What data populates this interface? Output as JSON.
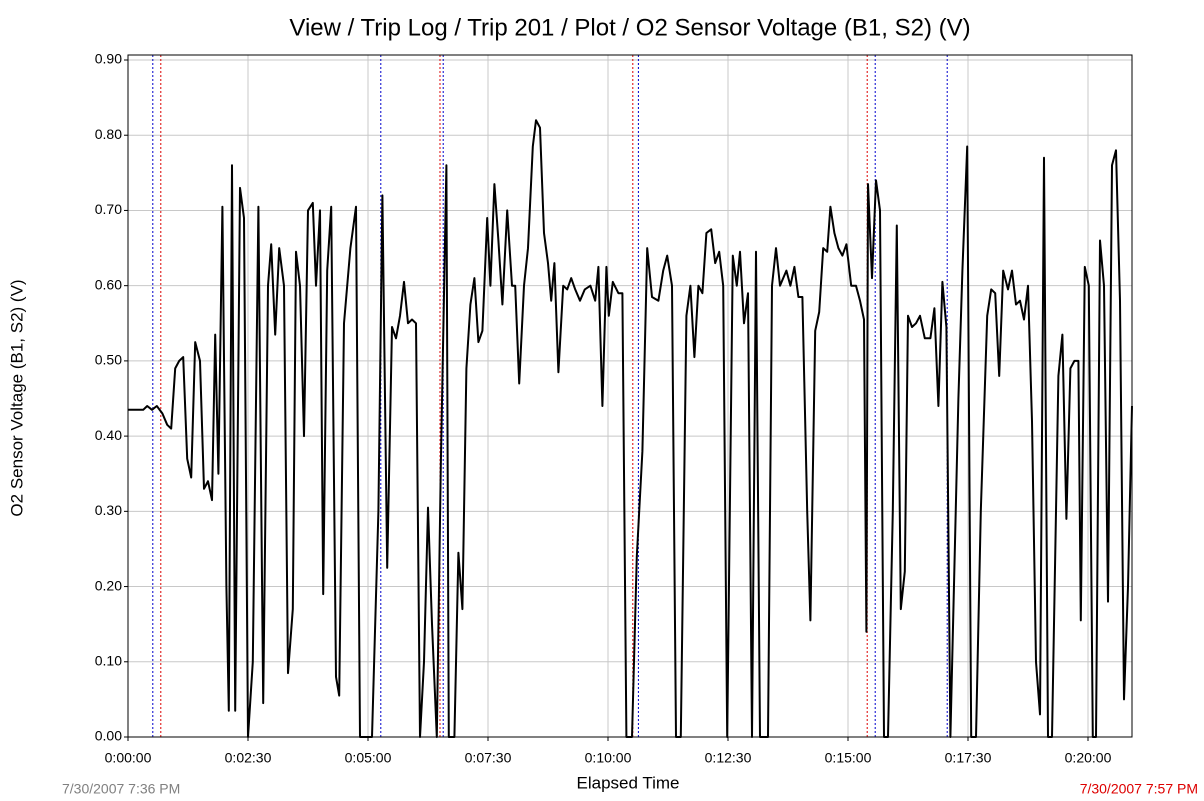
{
  "chart_data": {
    "type": "line",
    "title": "View / Trip Log / Trip 201 / Plot / O2 Sensor Voltage (B1, S2) (V)",
    "xlabel": "Elapsed Time",
    "ylabel": "O2 Sensor Voltage (B1, S2) (V)",
    "start_label": "7/30/2007 7:36 PM",
    "end_label": "7/30/2007 7:57 PM",
    "grid": true,
    "xlim": [
      0,
      1255
    ],
    "ylim": [
      0,
      0.9
    ],
    "xticks": [
      {
        "value": 0,
        "label": "0:00:00"
      },
      {
        "value": 150,
        "label": "0:02:30"
      },
      {
        "value": 300,
        "label": "0:05:00"
      },
      {
        "value": 450,
        "label": "0:07:30"
      },
      {
        "value": 600,
        "label": "0:10:00"
      },
      {
        "value": 750,
        "label": "0:12:30"
      },
      {
        "value": 900,
        "label": "0:15:00"
      },
      {
        "value": 1050,
        "label": "0:17:30"
      },
      {
        "value": 1200,
        "label": "0:20:00"
      }
    ],
    "yticks": [
      {
        "value": 0,
        "label": "0.00"
      },
      {
        "value": 0.1,
        "label": "0.10"
      },
      {
        "value": 0.2,
        "label": "0.20"
      },
      {
        "value": 0.3,
        "label": "0.30"
      },
      {
        "value": 0.4,
        "label": "0.40"
      },
      {
        "value": 0.5,
        "label": "0.50"
      },
      {
        "value": 0.6,
        "label": "0.60"
      },
      {
        "value": 0.7,
        "label": "0.70"
      },
      {
        "value": 0.8,
        "label": "0.80"
      },
      {
        "value": 0.9,
        "label": "0.90"
      }
    ],
    "markers": [
      {
        "x": 31,
        "color": "#0000cc"
      },
      {
        "x": 41,
        "color": "#dd0000"
      },
      {
        "x": 316,
        "color": "#0000cc"
      },
      {
        "x": 390,
        "color": "#dd0000"
      },
      {
        "x": 394,
        "color": "#0000cc"
      },
      {
        "x": 631,
        "color": "#dd0000"
      },
      {
        "x": 638,
        "color": "#0000cc"
      },
      {
        "x": 924,
        "color": "#dd0000"
      },
      {
        "x": 934,
        "color": "#0000cc"
      },
      {
        "x": 1024,
        "color": "#0000cc"
      }
    ],
    "series": [
      {
        "color": "#000000",
        "x": [
          0,
          19,
          24,
          30,
          36,
          43,
          49,
          54,
          59,
          64,
          69,
          74,
          79,
          84,
          90,
          95,
          100,
          105,
          109,
          113,
          118,
          123,
          126,
          130,
          134,
          140,
          145,
          150,
          156,
          163,
          169,
          175,
          179,
          184,
          189,
          195,
          200,
          206,
          210,
          215,
          220,
          225,
          231,
          235,
          240,
          244,
          249,
          254,
          260,
          264,
          270,
          278,
          285,
          290,
          305,
          313,
          318,
          324,
          330,
          335,
          340,
          345,
          350,
          355,
          360,
          365,
          370,
          375,
          380,
          386,
          391,
          398,
          401,
          408,
          413,
          418,
          423,
          428,
          433,
          438,
          443,
          449,
          453,
          458,
          463,
          468,
          474,
          480,
          484,
          489,
          495,
          500,
          506,
          510,
          515,
          520,
          525,
          529,
          533,
          538,
          544,
          549,
          554,
          559,
          565,
          571,
          578,
          584,
          588,
          593,
          598,
          601,
          606,
          613,
          618,
          623,
          630,
          636,
          643,
          649,
          655,
          663,
          669,
          674,
          680,
          685,
          691,
          698,
          703,
          708,
          713,
          718,
          723,
          729,
          734,
          739,
          744,
          749,
          756,
          761,
          765,
          770,
          775,
          780,
          785,
          790,
          800,
          805,
          810,
          815,
          823,
          828,
          833,
          838,
          843,
          849,
          853,
          859,
          864,
          869,
          874,
          878,
          883,
          888,
          893,
          898,
          904,
          910,
          915,
          920,
          923,
          925,
          930,
          935,
          940,
          945,
          950,
          956,
          961,
          966,
          971,
          975,
          980,
          985,
          990,
          996,
          1003,
          1008,
          1013,
          1018,
          1023,
          1028,
          1038,
          1043,
          1049,
          1054,
          1060,
          1066,
          1074,
          1079,
          1084,
          1089,
          1094,
          1100,
          1105,
          1110,
          1115,
          1120,
          1125,
          1130,
          1135,
          1140,
          1145,
          1150,
          1155,
          1163,
          1168,
          1173,
          1178,
          1183,
          1188,
          1191,
          1196,
          1201,
          1206,
          1210,
          1215,
          1220,
          1225,
          1230,
          1235,
          1240,
          1245,
          1250,
          1255
        ],
        "values": [
          0.435,
          0.435,
          0.44,
          0.435,
          0.44,
          0.43,
          0.415,
          0.41,
          0.49,
          0.5,
          0.505,
          0.37,
          0.345,
          0.525,
          0.5,
          0.33,
          0.34,
          0.315,
          0.535,
          0.35,
          0.705,
          0.2,
          0.035,
          0.76,
          0.035,
          0.73,
          0.69,
          0,
          0.1,
          0.705,
          0.045,
          0.6,
          0.655,
          0.535,
          0.65,
          0.6,
          0.085,
          0.17,
          0.645,
          0.6,
          0.4,
          0.7,
          0.71,
          0.6,
          0.7,
          0.19,
          0.62,
          0.705,
          0.08,
          0.055,
          0.55,
          0.65,
          0.705,
          0,
          0,
          0.3,
          0.72,
          0.225,
          0.545,
          0.53,
          0.56,
          0.605,
          0.55,
          0.555,
          0.55,
          0,
          0.1,
          0.305,
          0.15,
          0,
          0.36,
          0.76,
          0,
          0,
          0.245,
          0.17,
          0.49,
          0.575,
          0.61,
          0.525,
          0.54,
          0.69,
          0.6,
          0.735,
          0.66,
          0.575,
          0.7,
          0.6,
          0.6,
          0.47,
          0.6,
          0.65,
          0.785,
          0.82,
          0.81,
          0.67,
          0.63,
          0.58,
          0.63,
          0.485,
          0.6,
          0.595,
          0.61,
          0.595,
          0.58,
          0.595,
          0.6,
          0.58,
          0.625,
          0.44,
          0.625,
          0.56,
          0.605,
          0.59,
          0.59,
          0,
          0,
          0.24,
          0.38,
          0.65,
          0.585,
          0.58,
          0.62,
          0.64,
          0.6,
          0,
          0,
          0.56,
          0.6,
          0.505,
          0.6,
          0.59,
          0.67,
          0.675,
          0.63,
          0.645,
          0.6,
          0,
          0.64,
          0.6,
          0.645,
          0.55,
          0.59,
          0,
          0.645,
          0,
          0,
          0.6,
          0.65,
          0.6,
          0.62,
          0.6,
          0.625,
          0.585,
          0.585,
          0.3,
          0.155,
          0.54,
          0.565,
          0.65,
          0.645,
          0.705,
          0.67,
          0.65,
          0.64,
          0.655,
          0.6,
          0.6,
          0.58,
          0.555,
          0.14,
          0.735,
          0.61,
          0.74,
          0.7,
          0,
          0,
          0.3,
          0.68,
          0.17,
          0.22,
          0.56,
          0.545,
          0.55,
          0.56,
          0.53,
          0.53,
          0.57,
          0.44,
          0.605,
          0.545,
          0,
          0.45,
          0.62,
          0.785,
          0,
          0,
          0.3,
          0.56,
          0.595,
          0.59,
          0.48,
          0.62,
          0.595,
          0.62,
          0.575,
          0.58,
          0.555,
          0.6,
          0.42,
          0.1,
          0.03,
          0.77,
          0,
          0,
          0.48,
          0.535,
          0.29,
          0.49,
          0.5,
          0.5,
          0.155,
          0.625,
          0.6,
          0,
          0,
          0.66,
          0.6,
          0.18,
          0.76,
          0.78,
          0.58,
          0.05,
          0.2,
          0.44
        ]
      }
    ]
  }
}
